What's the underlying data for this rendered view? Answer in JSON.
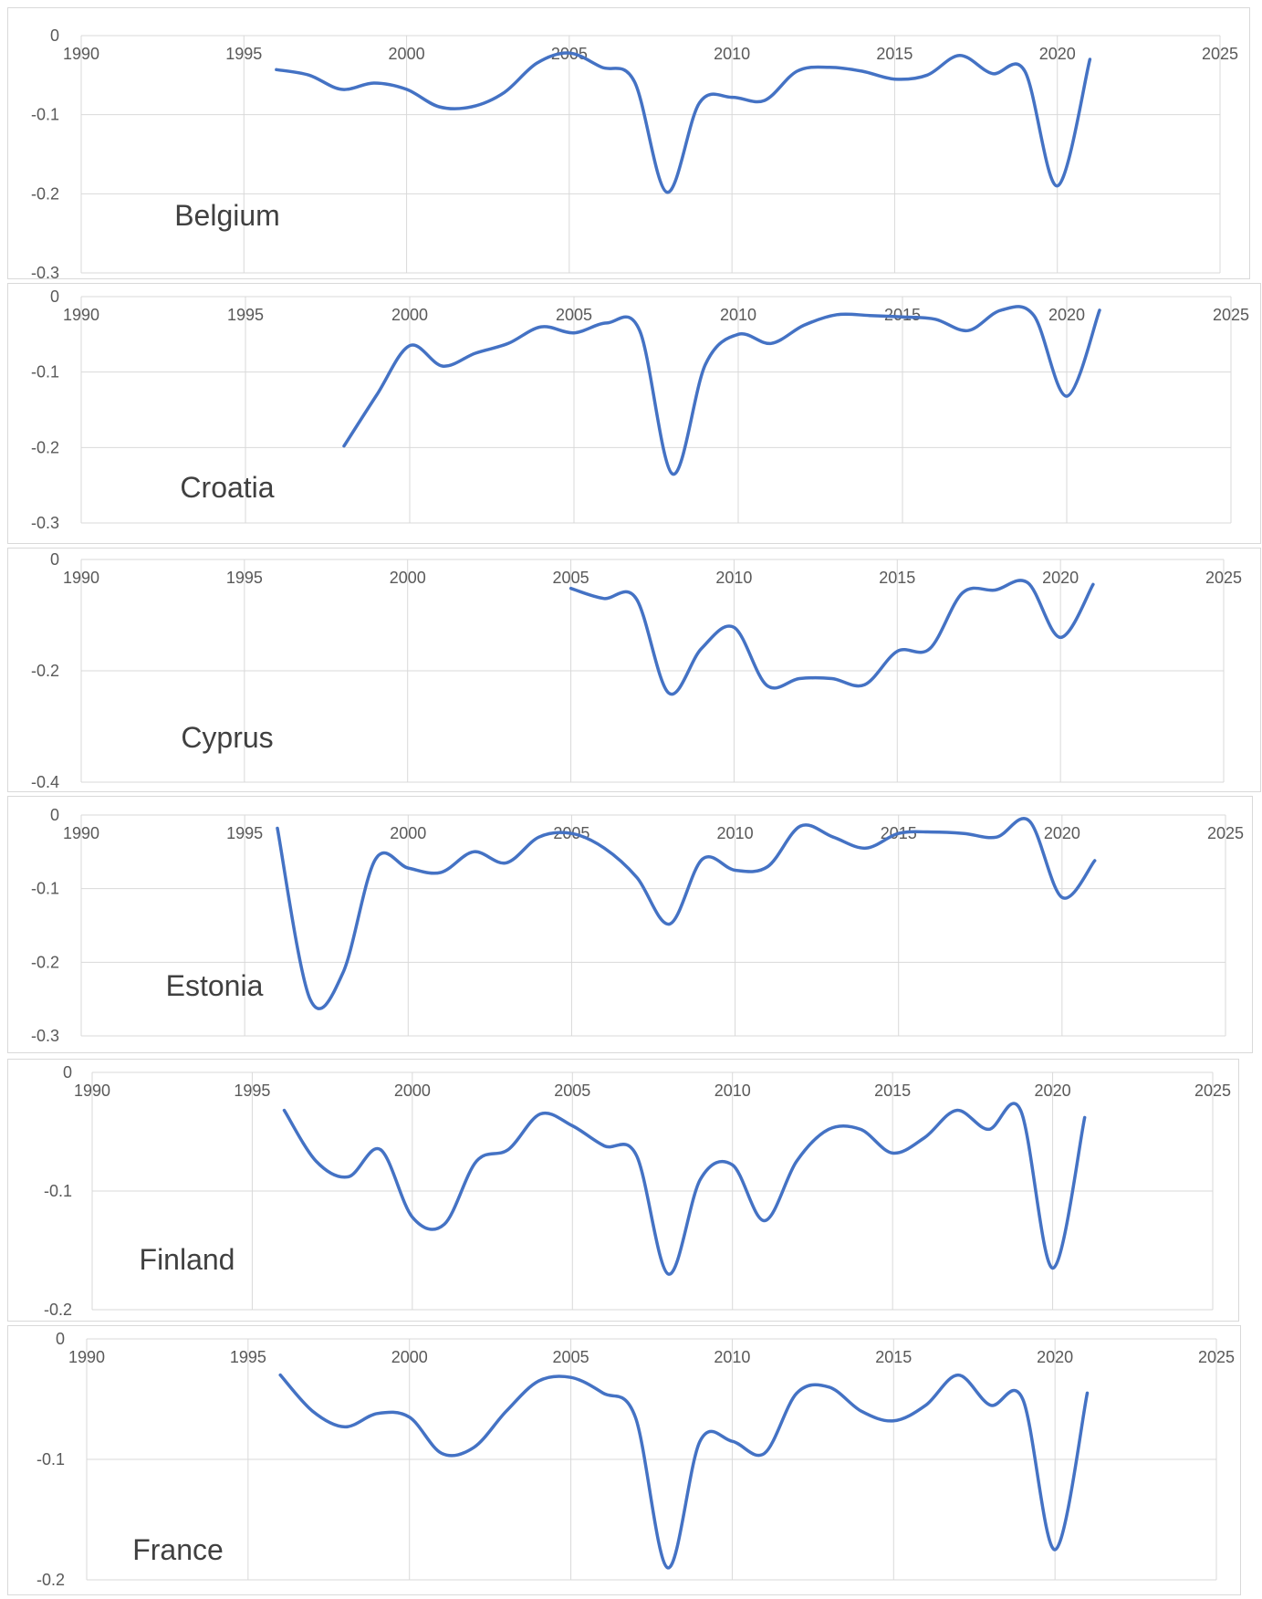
{
  "accent": "#4472C4",
  "chart_data": [
    {
      "type": "line",
      "title": "Belgium",
      "xlim": [
        1990,
        2025
      ],
      "ylim": [
        -0.3,
        0
      ],
      "xticks": [
        1990,
        1995,
        2000,
        2005,
        2010,
        2015,
        2020,
        2025
      ],
      "yticks": [
        0,
        -0.1,
        -0.2,
        -0.3
      ],
      "ytick_labels": [
        "0",
        "-0.1",
        "-0.2",
        "-0.3"
      ],
      "grid": true,
      "color": "#4472C4",
      "x": [
        1996,
        1997,
        1998,
        1999,
        2000,
        2001,
        2002,
        2003,
        2004,
        2005,
        2006,
        2007,
        2008,
        2009,
        2010,
        2011,
        2012,
        2013,
        2014,
        2015,
        2016,
        2017,
        2018,
        2019,
        2020,
        2021
      ],
      "y": [
        -0.043,
        -0.05,
        -0.068,
        -0.06,
        -0.068,
        -0.09,
        -0.09,
        -0.072,
        -0.035,
        -0.022,
        -0.04,
        -0.058,
        -0.198,
        -0.085,
        -0.078,
        -0.082,
        -0.045,
        -0.04,
        -0.045,
        -0.055,
        -0.05,
        -0.025,
        -0.048,
        -0.045,
        -0.19,
        -0.03
      ]
    },
    {
      "type": "line",
      "title": "Croatia",
      "xlim": [
        1990,
        2025
      ],
      "ylim": [
        -0.3,
        0
      ],
      "xticks": [
        1990,
        1995,
        2000,
        2005,
        2010,
        2015,
        2020,
        2025
      ],
      "yticks": [
        0,
        -0.1,
        -0.2,
        -0.3
      ],
      "ytick_labels": [
        "0",
        "-0.1",
        "-0.2",
        "-0.3"
      ],
      "grid": true,
      "color": "#4472C4",
      "x": [
        1998,
        1999,
        2000,
        2001,
        2002,
        2003,
        2004,
        2005,
        2006,
        2007,
        2008,
        2009,
        2010,
        2011,
        2012,
        2013,
        2014,
        2015,
        2016,
        2017,
        2018,
        2019,
        2020,
        2021
      ],
      "y": [
        -0.198,
        -0.13,
        -0.065,
        -0.092,
        -0.075,
        -0.062,
        -0.04,
        -0.048,
        -0.035,
        -0.045,
        -0.235,
        -0.09,
        -0.05,
        -0.062,
        -0.038,
        -0.024,
        -0.025,
        -0.027,
        -0.03,
        -0.045,
        -0.018,
        -0.025,
        -0.132,
        -0.018
      ]
    },
    {
      "type": "line",
      "title": "Cyprus",
      "xlim": [
        1990,
        2025
      ],
      "ylim": [
        -0.4,
        0
      ],
      "xticks": [
        1990,
        1995,
        2000,
        2005,
        2010,
        2015,
        2020,
        2025
      ],
      "yticks": [
        0,
        -0.2,
        -0.4
      ],
      "ytick_labels": [
        "0",
        "-0.2",
        "-0.4"
      ],
      "grid": true,
      "color": "#4472C4",
      "x": [
        2005,
        2006,
        2007,
        2008,
        2009,
        2010,
        2011,
        2012,
        2013,
        2014,
        2015,
        2016,
        2017,
        2018,
        2019,
        2020,
        2021
      ],
      "y": [
        -0.052,
        -0.07,
        -0.07,
        -0.24,
        -0.16,
        -0.122,
        -0.226,
        -0.214,
        -0.214,
        -0.225,
        -0.165,
        -0.16,
        -0.06,
        -0.055,
        -0.042,
        -0.14,
        -0.045
      ]
    },
    {
      "type": "line",
      "title": "Estonia",
      "xlim": [
        1990,
        2025
      ],
      "ylim": [
        -0.3,
        0
      ],
      "xticks": [
        1990,
        1995,
        2000,
        2005,
        2010,
        2015,
        2020,
        2025
      ],
      "yticks": [
        0,
        -0.1,
        -0.2,
        -0.3
      ],
      "ytick_labels": [
        "0",
        "-0.1",
        "-0.2",
        "-0.3"
      ],
      "grid": true,
      "color": "#4472C4",
      "x": [
        1996,
        1997,
        1998,
        1999,
        2000,
        2001,
        2002,
        2003,
        2004,
        2005,
        2006,
        2007,
        2008,
        2009,
        2010,
        2011,
        2012,
        2013,
        2014,
        2015,
        2016,
        2017,
        2018,
        2019,
        2020,
        2021
      ],
      "y": [
        -0.018,
        -0.25,
        -0.215,
        -0.06,
        -0.072,
        -0.078,
        -0.05,
        -0.065,
        -0.03,
        -0.025,
        -0.045,
        -0.085,
        -0.148,
        -0.06,
        -0.075,
        -0.07,
        -0.015,
        -0.03,
        -0.045,
        -0.025,
        -0.023,
        -0.025,
        -0.03,
        -0.008,
        -0.112,
        -0.062
      ]
    },
    {
      "type": "line",
      "title": "Finland",
      "xlim": [
        1990,
        2025
      ],
      "ylim": [
        -0.2,
        0
      ],
      "xticks": [
        1990,
        1995,
        2000,
        2005,
        2010,
        2015,
        2020,
        2025
      ],
      "yticks": [
        0,
        -0.1,
        -0.2
      ],
      "ytick_labels": [
        "0",
        "-0.1",
        "-0.2"
      ],
      "grid": true,
      "color": "#4472C4",
      "x": [
        1996,
        1997,
        1998,
        1999,
        2000,
        2001,
        2002,
        2003,
        2004,
        2005,
        2006,
        2007,
        2008,
        2009,
        2010,
        2011,
        2012,
        2013,
        2014,
        2015,
        2016,
        2017,
        2018,
        2019,
        2020,
        2021
      ],
      "y": [
        -0.032,
        -0.075,
        -0.088,
        -0.065,
        -0.122,
        -0.128,
        -0.075,
        -0.065,
        -0.035,
        -0.045,
        -0.062,
        -0.07,
        -0.17,
        -0.09,
        -0.078,
        -0.125,
        -0.075,
        -0.048,
        -0.048,
        -0.068,
        -0.055,
        -0.032,
        -0.048,
        -0.032,
        -0.165,
        -0.038
      ]
    },
    {
      "type": "line",
      "title": "France",
      "xlim": [
        1990,
        2025
      ],
      "ylim": [
        -0.2,
        0
      ],
      "xticks": [
        1990,
        1995,
        2000,
        2005,
        2010,
        2015,
        2020,
        2025
      ],
      "yticks": [
        0,
        -0.1,
        -0.2
      ],
      "ytick_labels": [
        "0",
        "-0.1",
        "-0.2"
      ],
      "grid": true,
      "color": "#4472C4",
      "x": [
        1996,
        1997,
        1998,
        1999,
        2000,
        2001,
        2002,
        2003,
        2004,
        2005,
        2006,
        2007,
        2008,
        2009,
        2010,
        2011,
        2012,
        2013,
        2014,
        2015,
        2016,
        2017,
        2018,
        2019,
        2020,
        2021
      ],
      "y": [
        -0.03,
        -0.06,
        -0.073,
        -0.062,
        -0.065,
        -0.095,
        -0.09,
        -0.06,
        -0.035,
        -0.032,
        -0.045,
        -0.065,
        -0.19,
        -0.085,
        -0.085,
        -0.095,
        -0.045,
        -0.04,
        -0.06,
        -0.068,
        -0.055,
        -0.03,
        -0.055,
        -0.05,
        -0.175,
        -0.045
      ]
    }
  ]
}
